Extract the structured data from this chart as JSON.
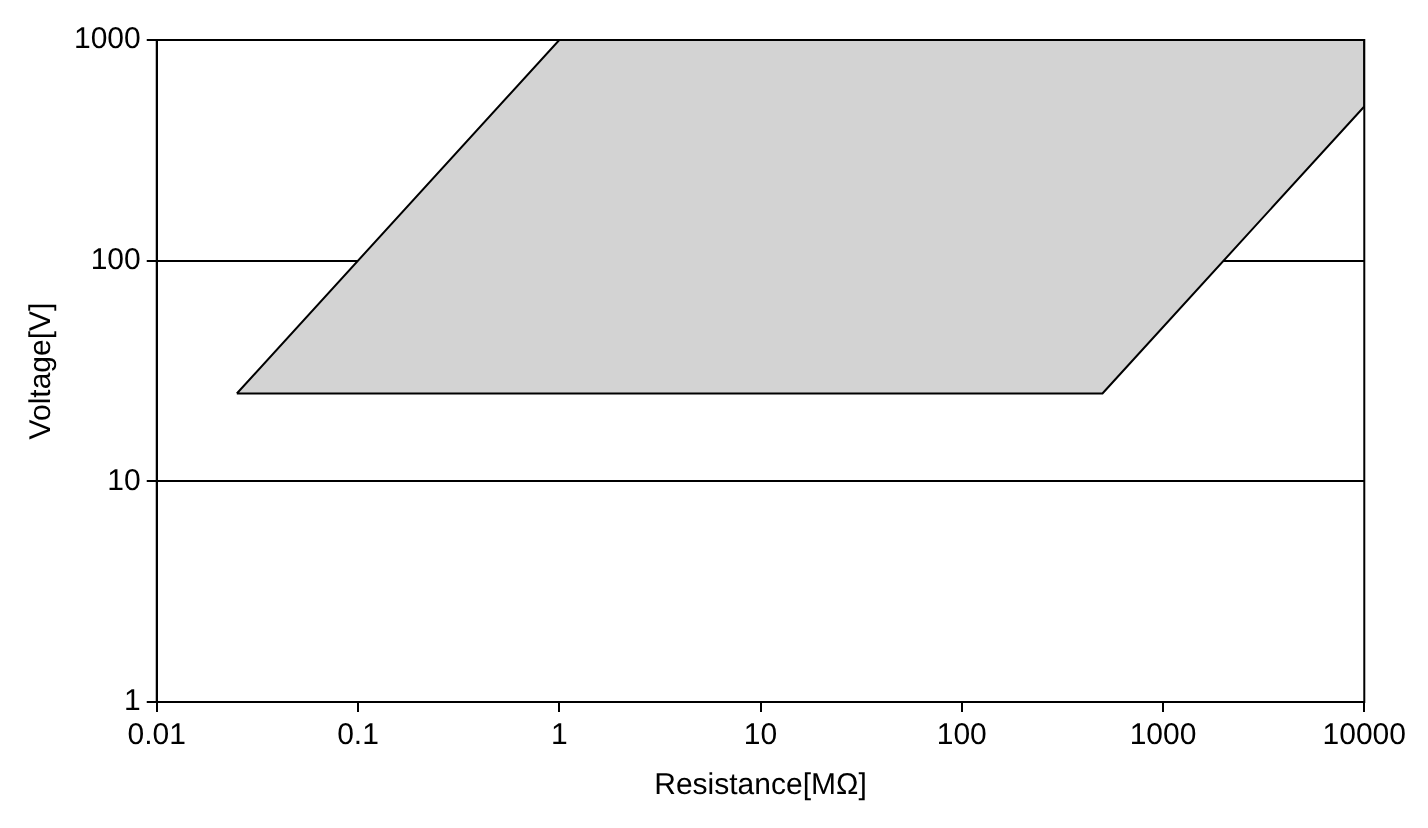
{
  "chart_data": {
    "type": "area",
    "xlabel": "Resistance[MΩ]",
    "ylabel": "Voltage[V]",
    "x": [
      0.025,
      1,
      10000,
      10000,
      500,
      0.025
    ],
    "series": [
      {
        "color": "#d3d3d3",
        "values": [
          25,
          1000,
          1000,
          500,
          25,
          25
        ]
      }
    ],
    "log": "xy",
    "xlim": [
      0.01,
      10000
    ],
    "xticks": [
      0.01,
      0.1,
      1,
      10,
      100,
      1000,
      10000
    ],
    "ylim": [
      1,
      1000
    ],
    "yticks": [
      1,
      10,
      100,
      1000
    ],
    "grid": "y",
    "legend": false,
    "marker": "none",
    "line_style": "solid"
  }
}
